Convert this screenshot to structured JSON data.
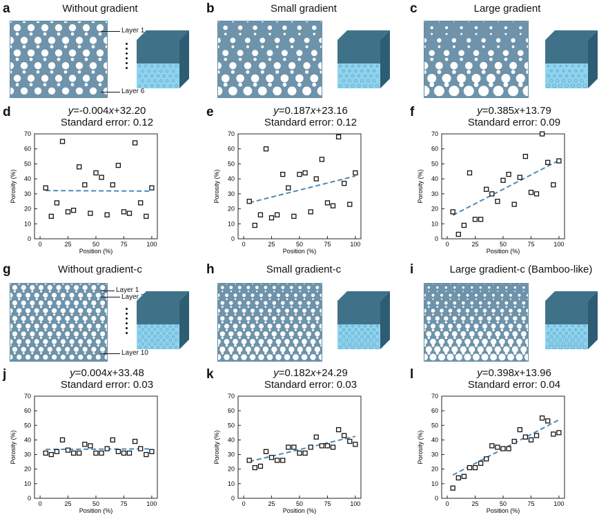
{
  "colors": {
    "lattice_bg": "#6e93aa",
    "lattice_hole": "#ffffff",
    "cube_top": "#3f7288",
    "cube_side": "#2d5d73",
    "cube_front": "#8fd3ee",
    "marker": "#111111",
    "fit_line": "#4a8ab8"
  },
  "panels_top": [
    {
      "letter": "a",
      "title": "Without gradient",
      "layer_top": "Layer 1",
      "layer_bottom": "Layer 6",
      "rows": 6,
      "gradient": 0
    },
    {
      "letter": "b",
      "title": "Small gradient",
      "rows": 6,
      "gradient": 1
    },
    {
      "letter": "c",
      "title": "Large gradient",
      "rows": 6,
      "gradient": 2
    }
  ],
  "panels_mid": [
    {
      "letter": "g",
      "title": "Without gradient-c",
      "layer_top": "Layer 1",
      "layer_second": "Layer 2",
      "layer_bottom": "Layer 10",
      "rows": 10,
      "gradient": 0
    },
    {
      "letter": "h",
      "title": "Small gradient-c",
      "rows": 10,
      "gradient": 1
    },
    {
      "letter": "i",
      "title": "Large gradient-c (Bamboo-like)",
      "rows": 10,
      "gradient": 2
    }
  ],
  "chart_data": [
    {
      "letter": "d",
      "type": "scatter",
      "eq_y": "y",
      "eq_rest": "=-0.004",
      "eq_x": "x",
      "eq_const": "+32.20",
      "std_error": "Standard error: 0.12",
      "xlabel": "Position (%)",
      "ylabel": "Porosity (%)",
      "xlim": [
        -5,
        105
      ],
      "ylim": [
        0,
        70
      ],
      "xticks": [
        0,
        25,
        50,
        75,
        100
      ],
      "yticks": [
        0,
        10,
        20,
        30,
        40,
        50,
        60,
        70
      ],
      "slope": -0.004,
      "intercept": 32.2,
      "x": [
        5,
        10,
        15,
        20,
        25,
        30,
        35,
        40,
        45,
        50,
        55,
        60,
        65,
        70,
        75,
        80,
        85,
        90,
        95,
        100
      ],
      "y": [
        34,
        15,
        24,
        65,
        18,
        19,
        48,
        36,
        17,
        44,
        41,
        16,
        36,
        49,
        18,
        17,
        64,
        24,
        15,
        34
      ]
    },
    {
      "letter": "e",
      "type": "scatter",
      "eq_y": "y",
      "eq_rest": "=0.187",
      "eq_x": "x",
      "eq_const": "+23.16",
      "std_error": "Standard error: 0.12",
      "xlabel": "Position (%)",
      "ylabel": "Porosity (%)",
      "xlim": [
        -5,
        105
      ],
      "ylim": [
        0,
        70
      ],
      "xticks": [
        0,
        25,
        50,
        75,
        100
      ],
      "yticks": [
        0,
        10,
        20,
        30,
        40,
        50,
        60,
        70
      ],
      "slope": 0.187,
      "intercept": 23.16,
      "x": [
        5,
        10,
        15,
        20,
        25,
        30,
        35,
        40,
        45,
        50,
        55,
        60,
        65,
        70,
        75,
        80,
        85,
        90,
        95,
        100
      ],
      "y": [
        25,
        9,
        16,
        60,
        14,
        16,
        43,
        34,
        15,
        43,
        44,
        18,
        40,
        53,
        24,
        22,
        68,
        37,
        23,
        44
      ]
    },
    {
      "letter": "f",
      "type": "scatter",
      "eq_y": "y",
      "eq_rest": "=0.385",
      "eq_x": "x",
      "eq_const": "+13.79",
      "std_error": "Standard error: 0.09",
      "xlabel": "Position (%)",
      "ylabel": "Porosity (%)",
      "xlim": [
        -5,
        105
      ],
      "ylim": [
        0,
        70
      ],
      "xticks": [
        0,
        25,
        50,
        75,
        100
      ],
      "yticks": [
        0,
        10,
        20,
        30,
        40,
        50,
        60,
        70
      ],
      "slope": 0.385,
      "intercept": 13.79,
      "x": [
        5,
        10,
        15,
        20,
        25,
        30,
        35,
        40,
        45,
        50,
        55,
        60,
        65,
        70,
        75,
        80,
        85,
        90,
        95,
        100
      ],
      "y": [
        18,
        3,
        9,
        44,
        13,
        13,
        33,
        30,
        25,
        39,
        43,
        23,
        41,
        55,
        31,
        30,
        70,
        51,
        36,
        52
      ]
    },
    {
      "letter": "j",
      "type": "scatter",
      "eq_y": "y",
      "eq_rest": "=0.004",
      "eq_x": "x",
      "eq_const": "+33.48",
      "std_error": "Standard error: 0.03",
      "xlabel": "Position (%)",
      "ylabel": "Porosity (%)",
      "xlim": [
        -5,
        105
      ],
      "ylim": [
        0,
        70
      ],
      "xticks": [
        0,
        25,
        50,
        75,
        100
      ],
      "yticks": [
        0,
        10,
        20,
        30,
        40,
        50,
        60,
        70
      ],
      "slope": 0.004,
      "intercept": 33.48,
      "x": [
        5,
        10,
        15,
        20,
        25,
        30,
        35,
        40,
        45,
        50,
        55,
        60,
        65,
        70,
        75,
        80,
        85,
        90,
        95,
        100
      ],
      "y": [
        31,
        30,
        32,
        40,
        33,
        31,
        31,
        37,
        36,
        31,
        31,
        34,
        40,
        32,
        31,
        31,
        39,
        34,
        30,
        32
      ]
    },
    {
      "letter": "k",
      "type": "scatter",
      "eq_y": "y",
      "eq_rest": "=0.182",
      "eq_x": "x",
      "eq_const": "+24.29",
      "std_error": "Standard error: 0.03",
      "xlabel": "Position (%)",
      "ylabel": "Porosity (%)",
      "xlim": [
        -5,
        105
      ],
      "ylim": [
        0,
        70
      ],
      "xticks": [
        0,
        25,
        50,
        75,
        100
      ],
      "yticks": [
        0,
        10,
        20,
        30,
        40,
        50,
        60,
        70
      ],
      "slope": 0.182,
      "intercept": 24.29,
      "x": [
        5,
        10,
        15,
        20,
        25,
        30,
        35,
        40,
        45,
        50,
        55,
        60,
        65,
        70,
        75,
        80,
        85,
        90,
        95,
        100
      ],
      "y": [
        26,
        21,
        22,
        32,
        28,
        26,
        26,
        35,
        35,
        31,
        31,
        35,
        42,
        36,
        36,
        35,
        47,
        43,
        39,
        37
      ]
    },
    {
      "letter": "l",
      "type": "scatter",
      "eq_y": "y",
      "eq_rest": "=0.398",
      "eq_x": "x",
      "eq_const": "+13.96",
      "std_error": "Standard error: 0.04",
      "xlabel": "Position (%)",
      "ylabel": "Porosity (%)",
      "xlim": [
        -5,
        105
      ],
      "ylim": [
        0,
        70
      ],
      "xticks": [
        0,
        25,
        50,
        75,
        100
      ],
      "yticks": [
        0,
        10,
        20,
        30,
        40,
        50,
        60,
        70
      ],
      "slope": 0.398,
      "intercept": 13.96,
      "x": [
        5,
        10,
        15,
        20,
        25,
        30,
        35,
        40,
        45,
        50,
        55,
        60,
        65,
        70,
        75,
        80,
        85,
        90,
        95,
        100
      ],
      "y": [
        7,
        14,
        15,
        21,
        21,
        24,
        27,
        36,
        35,
        34,
        34,
        39,
        47,
        42,
        40,
        43,
        55,
        53,
        44,
        45
      ]
    }
  ]
}
